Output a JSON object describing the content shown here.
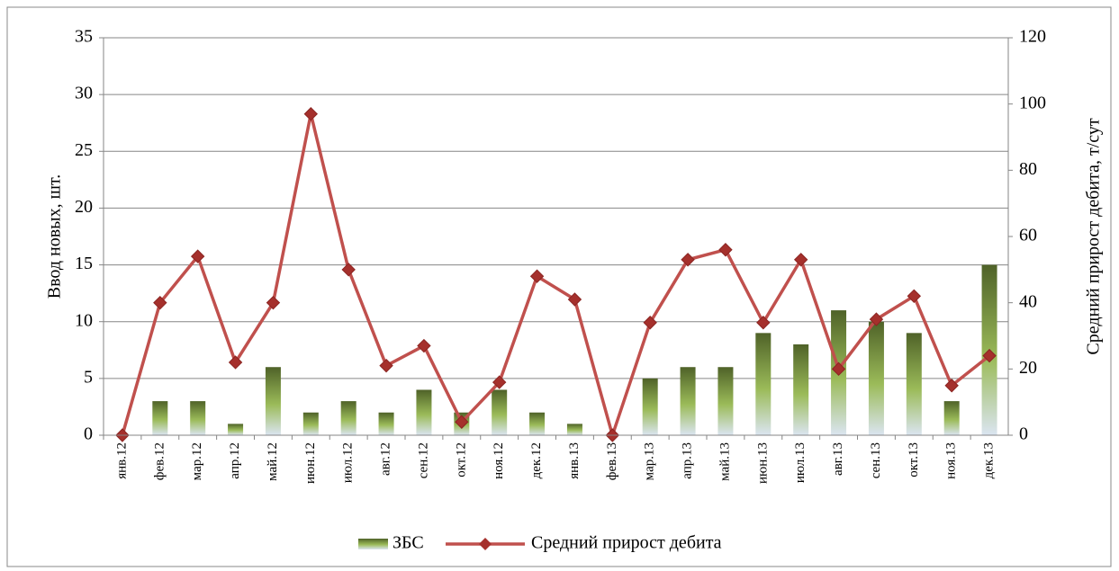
{
  "chart_data": {
    "type": "bar",
    "categories": [
      "янв.12",
      "фев.12",
      "мар.12",
      "апр.12",
      "май.12",
      "июн.12",
      "июл.12",
      "авг.12",
      "сен.12",
      "окт.12",
      "ноя.12",
      "дек.12",
      "янв.13",
      "фев.13",
      "мар.13",
      "апр.13",
      "май.13",
      "июн.13",
      "июл.13",
      "авг.13",
      "сен.13",
      "окт.13",
      "ноя.13",
      "дек.13"
    ],
    "series": [
      {
        "name": "ЗБС",
        "type": "bar",
        "color": "#4f6228",
        "values": [
          0,
          3,
          3,
          1,
          6,
          2,
          3,
          2,
          4,
          2,
          4,
          2,
          1,
          0,
          5,
          6,
          6,
          9,
          8,
          11,
          10,
          9,
          3,
          15
        ]
      },
      {
        "name": "Средний прирост дебита",
        "type": "line",
        "axis": "y2",
        "color": "#c0504d",
        "values": [
          0,
          40,
          54,
          22,
          40,
          97,
          50,
          21,
          27,
          4,
          16,
          48,
          41,
          0,
          34,
          53,
          56,
          34,
          53,
          20,
          35,
          42,
          15,
          24
        ]
      }
    ],
    "y_label": "Ввод новых, шт.",
    "y2_label": "Средний прирост дебита, т/сут",
    "ylim": [
      0,
      35
    ],
    "yticks": [
      0,
      5,
      10,
      15,
      20,
      25,
      30,
      35
    ],
    "y2lim": [
      0,
      120
    ],
    "y2ticks": [
      0,
      20,
      40,
      60,
      80,
      100,
      120
    ],
    "grid": true,
    "legend": "bottom"
  }
}
